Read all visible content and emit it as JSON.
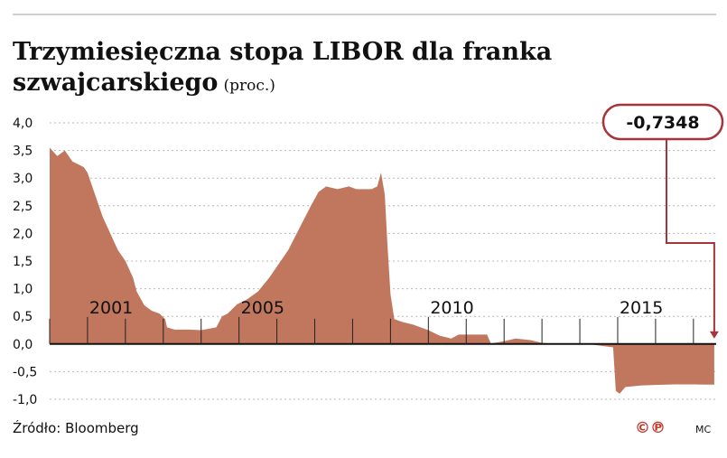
{
  "chart_data": {
    "type": "area",
    "title": "Trzymiesięczna stopa LIBOR dla franka",
    "title_line2": "szwajcarskiego",
    "unit": "(proc.)",
    "ylim": [
      -1.0,
      4.0
    ],
    "y_ticks": [
      "4,0",
      "3,5",
      "3,0",
      "2,5",
      "2,0",
      "1,5",
      "1,0",
      "0,5",
      "0,0",
      "-0,5",
      "-1,0"
    ],
    "x_range": [
      2000.0,
      2017.6
    ],
    "x_labels": [
      {
        "x": 2001,
        "label": "2001"
      },
      {
        "x": 2005,
        "label": "2005"
      },
      {
        "x": 2010,
        "label": "2010"
      },
      {
        "x": 2015,
        "label": "2015"
      }
    ],
    "grid": true,
    "series": [
      {
        "color": "#c0775e",
        "points": [
          [
            2000.0,
            3.55
          ],
          [
            2000.2,
            3.4
          ],
          [
            2000.4,
            3.5
          ],
          [
            2000.6,
            3.3
          ],
          [
            2000.9,
            3.2
          ],
          [
            2001.0,
            3.1
          ],
          [
            2001.2,
            2.7
          ],
          [
            2001.4,
            2.3
          ],
          [
            2001.6,
            2.0
          ],
          [
            2001.8,
            1.7
          ],
          [
            2002.0,
            1.5
          ],
          [
            2002.2,
            1.2
          ],
          [
            2002.3,
            0.95
          ],
          [
            2002.5,
            0.7
          ],
          [
            2002.7,
            0.6
          ],
          [
            2002.9,
            0.55
          ],
          [
            2003.05,
            0.45
          ],
          [
            2003.1,
            0.3
          ],
          [
            2003.3,
            0.26
          ],
          [
            2003.7,
            0.26
          ],
          [
            2004.0,
            0.25
          ],
          [
            2004.4,
            0.3
          ],
          [
            2004.55,
            0.5
          ],
          [
            2004.7,
            0.55
          ],
          [
            2004.95,
            0.72
          ],
          [
            2005.2,
            0.8
          ],
          [
            2005.5,
            0.95
          ],
          [
            2005.8,
            1.2
          ],
          [
            2006.0,
            1.4
          ],
          [
            2006.3,
            1.7
          ],
          [
            2006.6,
            2.1
          ],
          [
            2006.9,
            2.5
          ],
          [
            2007.1,
            2.75
          ],
          [
            2007.3,
            2.85
          ],
          [
            2007.6,
            2.8
          ],
          [
            2007.9,
            2.85
          ],
          [
            2008.1,
            2.8
          ],
          [
            2008.3,
            2.8
          ],
          [
            2008.5,
            2.8
          ],
          [
            2008.65,
            2.85
          ],
          [
            2008.75,
            3.1
          ],
          [
            2008.85,
            2.7
          ],
          [
            2008.92,
            1.8
          ],
          [
            2009.0,
            0.9
          ],
          [
            2009.1,
            0.45
          ],
          [
            2009.3,
            0.4
          ],
          [
            2009.6,
            0.35
          ],
          [
            2010.0,
            0.25
          ],
          [
            2010.3,
            0.15
          ],
          [
            2010.6,
            0.1
          ],
          [
            2010.8,
            0.17
          ],
          [
            2011.2,
            0.17
          ],
          [
            2011.55,
            0.17
          ],
          [
            2011.65,
            0.01
          ],
          [
            2012.0,
            0.05
          ],
          [
            2012.3,
            0.1
          ],
          [
            2012.7,
            0.07
          ],
          [
            2013.0,
            0.02
          ],
          [
            2013.5,
            0.0
          ],
          [
            2014.2,
            0.0
          ],
          [
            2014.88,
            -0.06
          ],
          [
            2014.95,
            -0.85
          ],
          [
            2015.05,
            -0.9
          ],
          [
            2015.2,
            -0.78
          ],
          [
            2015.6,
            -0.75
          ],
          [
            2016.0,
            -0.74
          ],
          [
            2016.5,
            -0.73
          ],
          [
            2017.0,
            -0.73
          ],
          [
            2017.3,
            -0.7348
          ],
          [
            2017.55,
            -0.7348
          ]
        ]
      }
    ],
    "callout": {
      "value": "-0,7348",
      "x": 2017.55,
      "y": -0.7348
    }
  },
  "footer": {
    "source": "Źródło: Bloomberg",
    "copyright_glyphs": "©℗",
    "author": "MC"
  },
  "colors": {
    "area": "#c0775e",
    "callout_border": "#a7343a",
    "text": "#111111",
    "grid": "#b9b9b9",
    "top_rule": "#cfcfcf"
  }
}
